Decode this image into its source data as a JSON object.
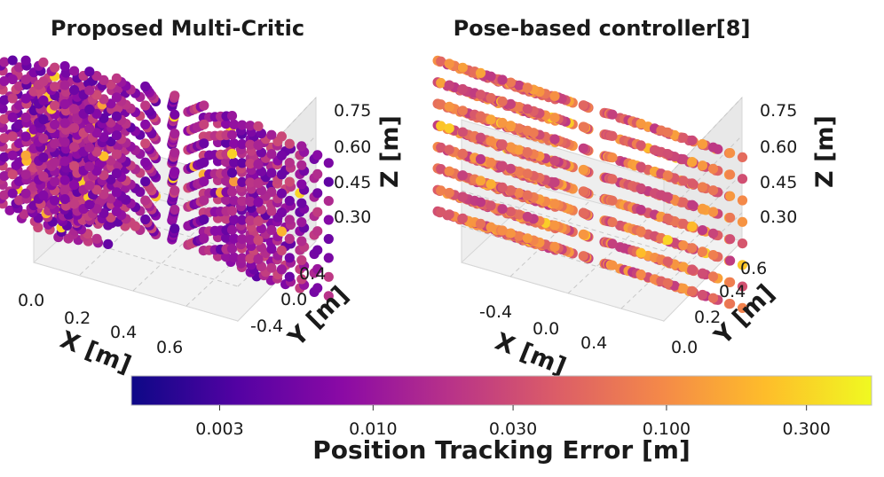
{
  "chart_data": [
    {
      "type": "scatter3d",
      "title": "Proposed Multi-Critic",
      "xlabel": "X [m]",
      "ylabel": "Y [m]",
      "zlabel": "Z [m]",
      "xticks": [
        "0.0",
        "0.2",
        "0.4",
        "0.6"
      ],
      "yticks": [
        "-0.4",
        "0.0",
        "0.4"
      ],
      "zticks": [
        "0.30",
        "0.45",
        "0.60",
        "0.75"
      ],
      "xlim": [
        0.0,
        0.7
      ],
      "ylim": [
        -0.6,
        0.6
      ],
      "zlim": [
        0.22,
        0.85
      ],
      "shape": "half-cylinder shells (radius 0.3-0.55 m, 8 height layers)",
      "typical_error_m": [
        0.004,
        0.03
      ]
    },
    {
      "type": "scatter3d",
      "title": "Pose-based controller[8]",
      "xlabel": "X [m]",
      "ylabel": "Y [m]",
      "zlabel": "Z [m]",
      "xticks": [
        "-0.4",
        "0.0",
        "0.4"
      ],
      "yticks": [
        "0.0",
        "0.2",
        "0.4",
        "0.6"
      ],
      "zticks": [
        "0.30",
        "0.45",
        "0.60",
        "0.75"
      ],
      "xlim": [
        -0.6,
        0.6
      ],
      "ylim": [
        0.0,
        0.7
      ],
      "zlim": [
        0.22,
        0.85
      ],
      "shape": "half-cylinder shells (radius 0.3-0.55 m, 8 height layers)",
      "typical_error_m": [
        0.02,
        0.15
      ]
    }
  ],
  "colorbar": {
    "label": "Position Tracking Error [m]",
    "scale": "log",
    "range": [
      0.0015,
      0.5
    ],
    "ticks": [
      "0.003",
      "0.010",
      "0.030",
      "0.100",
      "0.300"
    ],
    "tick_values": [
      0.003,
      0.01,
      0.03,
      0.1,
      0.3
    ],
    "colormap": [
      "#0d0887",
      "#5302a3",
      "#8b0aa5",
      "#b83289",
      "#db5c68",
      "#f48849",
      "#febd2a",
      "#f0f921"
    ]
  }
}
